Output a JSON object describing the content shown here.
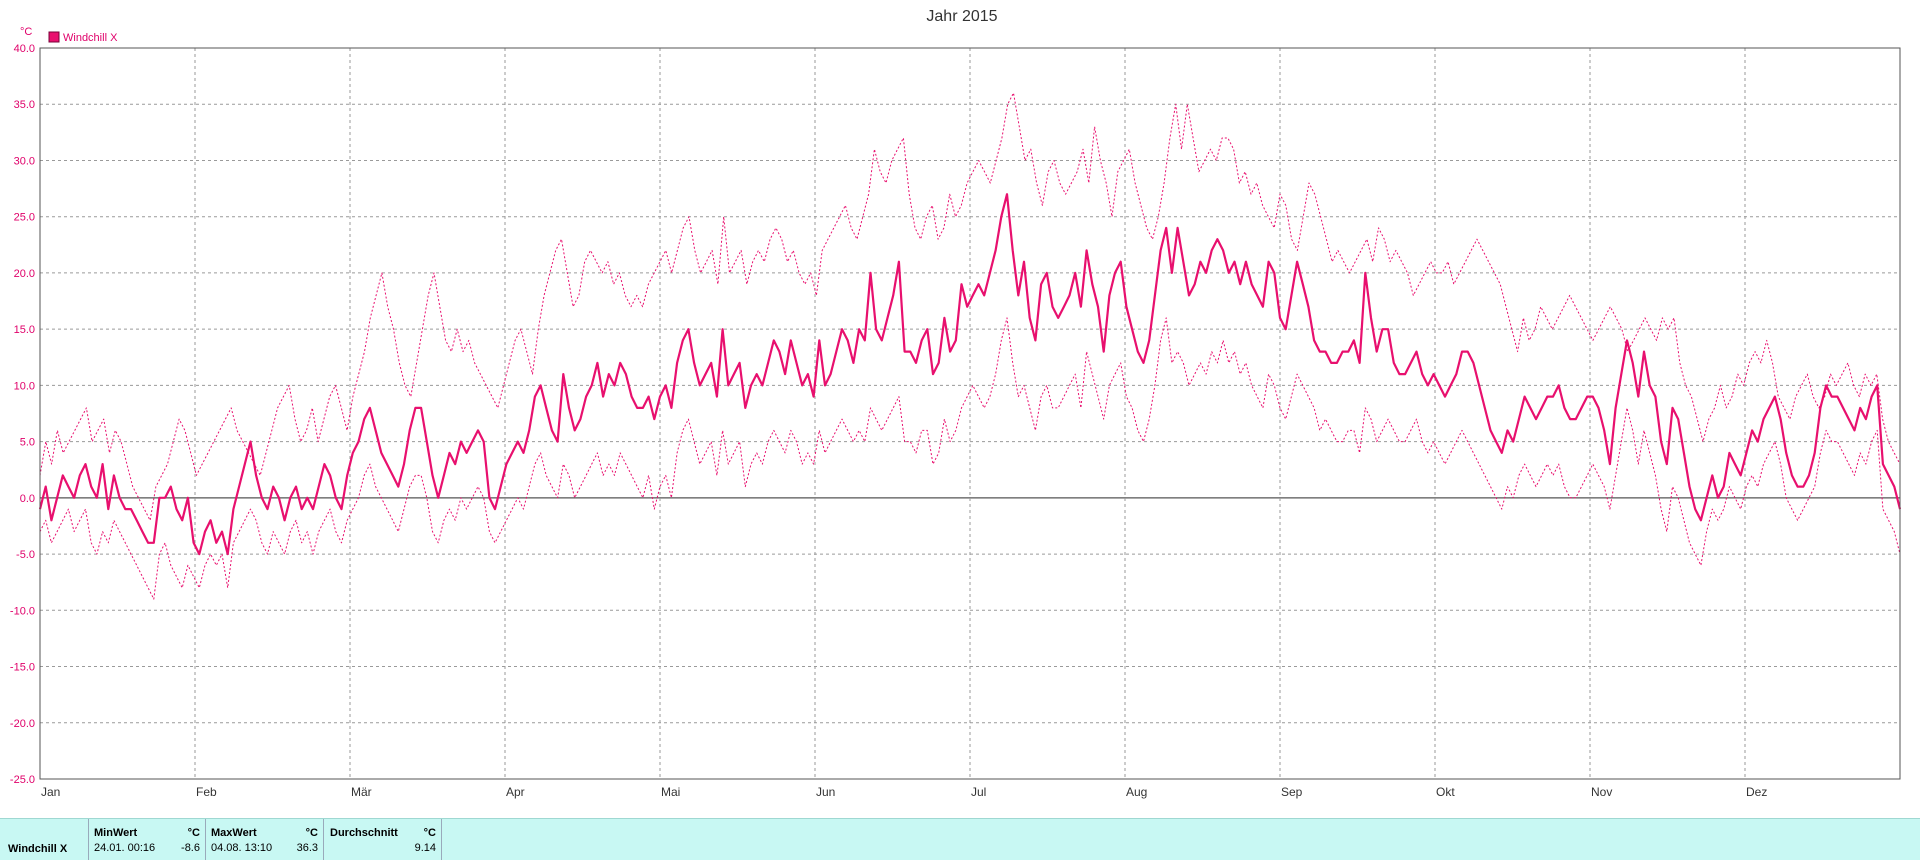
{
  "chart_data": {
    "type": "line",
    "title": "Jahr 2015",
    "yunit": "°C",
    "ylim": [
      -25,
      40
    ],
    "ytick_step": 5,
    "ytick_labels": [
      "40.0",
      "35.0",
      "30.0",
      "25.0",
      "20.0",
      "15.0",
      "10.0",
      "5.0",
      "0.0",
      "-5.0",
      "-10.0",
      "-15.0",
      "-20.0",
      "-25.0"
    ],
    "x_labels": [
      "Jan",
      "Feb",
      "Mär",
      "Apr",
      "Mai",
      "Jun",
      "Jul",
      "Aug",
      "Sep",
      "Okt",
      "Nov",
      "Dez"
    ],
    "grid": true,
    "legend_position": "top-left",
    "series": [
      {
        "name": "Windchill X",
        "style": "solid",
        "color": "#e8106e",
        "values": [
          -1,
          1,
          -2,
          0,
          2,
          1,
          0,
          2,
          3,
          1,
          0,
          3,
          -1,
          2,
          0,
          -1,
          -1,
          -2,
          -3,
          -4,
          -4,
          0,
          0,
          1,
          -1,
          -2,
          0,
          -4,
          -5,
          -3,
          -2,
          -4,
          -3,
          -5,
          -1,
          1,
          3,
          5,
          2,
          0,
          -1,
          1,
          0,
          -2,
          0,
          1,
          -1,
          0,
          -1,
          1,
          3,
          2,
          0,
          -1,
          2,
          4,
          5,
          7,
          8,
          6,
          4,
          3,
          2,
          1,
          3,
          6,
          8,
          8,
          5,
          2,
          0,
          2,
          4,
          3,
          5,
          4,
          5,
          6,
          5,
          0,
          -1,
          1,
          3,
          4,
          5,
          4,
          6,
          9,
          10,
          8,
          6,
          5,
          11,
          8,
          6,
          7,
          9,
          10,
          12,
          9,
          11,
          10,
          12,
          11,
          9,
          8,
          8,
          9,
          7,
          9,
          10,
          8,
          12,
          14,
          15,
          12,
          10,
          11,
          12,
          9,
          15,
          10,
          11,
          12,
          8,
          10,
          11,
          10,
          12,
          14,
          13,
          11,
          14,
          12,
          10,
          11,
          9,
          14,
          10,
          11,
          13,
          15,
          14,
          12,
          15,
          14,
          20,
          15,
          14,
          16,
          18,
          21,
          13,
          13,
          12,
          14,
          15,
          11,
          12,
          16,
          13,
          14,
          19,
          17,
          18,
          19,
          18,
          20,
          22,
          25,
          27,
          22,
          18,
          21,
          16,
          14,
          19,
          20,
          17,
          16,
          17,
          18,
          20,
          17,
          22,
          19,
          17,
          13,
          18,
          20,
          21,
          17,
          15,
          13,
          12,
          14,
          18,
          22,
          24,
          20,
          24,
          21,
          18,
          19,
          21,
          20,
          22,
          23,
          22,
          20,
          21,
          19,
          21,
          19,
          18,
          17,
          21,
          20,
          16,
          15,
          18,
          21,
          19,
          17,
          14,
          13,
          13,
          12,
          12,
          13,
          13,
          14,
          12,
          20,
          16,
          13,
          15,
          15,
          12,
          11,
          11,
          12,
          13,
          11,
          10,
          11,
          10,
          9,
          10,
          11,
          13,
          13,
          12,
          10,
          8,
          6,
          5,
          4,
          6,
          5,
          7,
          9,
          8,
          7,
          8,
          9,
          9,
          10,
          8,
          7,
          7,
          8,
          9,
          9,
          8,
          6,
          3,
          8,
          11,
          14,
          12,
          9,
          13,
          10,
          9,
          5,
          3,
          8,
          7,
          4,
          1,
          -1,
          -2,
          0,
          2,
          0,
          1,
          4,
          3,
          2,
          4,
          6,
          5,
          7,
          8,
          9,
          7,
          4,
          2,
          1,
          1,
          2,
          4,
          8,
          10,
          9,
          9,
          8,
          7,
          6,
          8,
          7,
          9,
          10,
          3,
          2,
          1,
          -1
        ]
      },
      {
        "name": "",
        "style": "dotted",
        "color": "#e8106e",
        "values": [
          2,
          5,
          3,
          6,
          4,
          5,
          6,
          7,
          8,
          5,
          6,
          7,
          4,
          6,
          5,
          3,
          1,
          0,
          -1,
          -2,
          1,
          2,
          3,
          5,
          7,
          6,
          4,
          2,
          3,
          4,
          5,
          6,
          7,
          8,
          6,
          5,
          4,
          3,
          2,
          4,
          6,
          8,
          9,
          10,
          7,
          5,
          6,
          8,
          5,
          7,
          9,
          10,
          8,
          6,
          9,
          11,
          13,
          16,
          18,
          20,
          17,
          15,
          12,
          10,
          9,
          12,
          15,
          18,
          20,
          17,
          14,
          13,
          15,
          13,
          14,
          12,
          11,
          10,
          9,
          8,
          10,
          12,
          14,
          15,
          13,
          11,
          15,
          18,
          20,
          22,
          23,
          20,
          17,
          18,
          21,
          22,
          21,
          20,
          21,
          19,
          20,
          18,
          17,
          18,
          17,
          19,
          20,
          21,
          22,
          20,
          22,
          24,
          25,
          22,
          20,
          21,
          22,
          19,
          25,
          20,
          21,
          22,
          19,
          21,
          22,
          21,
          23,
          24,
          23,
          21,
          22,
          20,
          19,
          20,
          18,
          22,
          23,
          24,
          25,
          26,
          24,
          23,
          25,
          27,
          31,
          29,
          28,
          30,
          31,
          32,
          27,
          24,
          23,
          25,
          26,
          23,
          24,
          27,
          25,
          26,
          28,
          29,
          30,
          29,
          28,
          30,
          32,
          35,
          36,
          33,
          30,
          31,
          28,
          26,
          29,
          30,
          28,
          27,
          28,
          29,
          31,
          28,
          33,
          30,
          28,
          25,
          29,
          30,
          31,
          28,
          26,
          24,
          23,
          25,
          28,
          32,
          35,
          31,
          35,
          32,
          29,
          30,
          31,
          30,
          32,
          32,
          31,
          28,
          29,
          27,
          28,
          26,
          25,
          24,
          27,
          26,
          23,
          22,
          25,
          28,
          27,
          25,
          23,
          21,
          22,
          21,
          20,
          21,
          22,
          23,
          21,
          24,
          23,
          21,
          22,
          21,
          20,
          18,
          19,
          20,
          21,
          20,
          20,
          21,
          19,
          20,
          21,
          22,
          23,
          22,
          21,
          20,
          19,
          17,
          15,
          13,
          16,
          14,
          15,
          17,
          16,
          15,
          16,
          17,
          18,
          17,
          16,
          15,
          14,
          15,
          16,
          17,
          16,
          15,
          13,
          14,
          15,
          16,
          15,
          14,
          16,
          15,
          16,
          12,
          10,
          9,
          7,
          5,
          7,
          8,
          10,
          8,
          9,
          11,
          10,
          12,
          13,
          12,
          14,
          12,
          9,
          8,
          7,
          9,
          10,
          11,
          9,
          8,
          9,
          11,
          10,
          11,
          12,
          10,
          9,
          11,
          10,
          11,
          7,
          5,
          4,
          3
        ]
      },
      {
        "name": "",
        "style": "dotted",
        "color": "#e8106e",
        "values": [
          -3,
          -2,
          -4,
          -3,
          -2,
          -1,
          -3,
          -2,
          -1,
          -4,
          -5,
          -3,
          -4,
          -2,
          -3,
          -4,
          -5,
          -6,
          -7,
          -8,
          -9,
          -5,
          -4,
          -6,
          -7,
          -8,
          -6,
          -7,
          -8,
          -6,
          -5,
          -6,
          -5,
          -8,
          -4,
          -3,
          -2,
          -1,
          -2,
          -4,
          -5,
          -3,
          -4,
          -5,
          -3,
          -2,
          -4,
          -3,
          -5,
          -3,
          -2,
          -1,
          -3,
          -4,
          -2,
          -1,
          0,
          2,
          3,
          1,
          0,
          -1,
          -2,
          -3,
          -1,
          1,
          2,
          2,
          0,
          -3,
          -4,
          -2,
          -1,
          -2,
          0,
          -1,
          0,
          1,
          0,
          -3,
          -4,
          -3,
          -2,
          -1,
          0,
          -1,
          1,
          3,
          4,
          2,
          1,
          0,
          3,
          2,
          0,
          1,
          2,
          3,
          4,
          2,
          3,
          2,
          4,
          3,
          2,
          1,
          0,
          2,
          -1,
          1,
          2,
          0,
          4,
          6,
          7,
          5,
          3,
          4,
          5,
          2,
          6,
          3,
          4,
          5,
          1,
          3,
          4,
          3,
          5,
          6,
          5,
          4,
          6,
          5,
          3,
          4,
          3,
          6,
          4,
          5,
          6,
          7,
          6,
          5,
          6,
          5,
          8,
          7,
          6,
          7,
          8,
          9,
          5,
          5,
          4,
          6,
          6,
          3,
          4,
          7,
          5,
          6,
          8,
          9,
          10,
          9,
          8,
          9,
          11,
          14,
          16,
          12,
          9,
          10,
          8,
          6,
          9,
          10,
          8,
          8,
          9,
          10,
          11,
          8,
          13,
          11,
          9,
          7,
          10,
          11,
          12,
          9,
          8,
          6,
          5,
          7,
          10,
          14,
          16,
          12,
          13,
          12,
          10,
          11,
          12,
          11,
          13,
          12,
          14,
          12,
          13,
          11,
          12,
          10,
          9,
          8,
          11,
          10,
          8,
          7,
          9,
          11,
          10,
          9,
          8,
          6,
          7,
          6,
          5,
          5,
          6,
          6,
          4,
          8,
          7,
          5,
          6,
          7,
          6,
          5,
          5,
          6,
          7,
          5,
          4,
          5,
          4,
          3,
          4,
          5,
          6,
          5,
          4,
          3,
          2,
          1,
          0,
          -1,
          1,
          0,
          2,
          3,
          2,
          1,
          2,
          3,
          2,
          3,
          1,
          0,
          0,
          1,
          2,
          3,
          2,
          1,
          -1,
          2,
          5,
          8,
          6,
          3,
          6,
          4,
          2,
          -1,
          -3,
          1,
          0,
          -2,
          -4,
          -5,
          -6,
          -3,
          -1,
          -2,
          -1,
          1,
          0,
          -1,
          1,
          2,
          1,
          3,
          4,
          5,
          3,
          0,
          -1,
          -2,
          -1,
          0,
          1,
          4,
          6,
          5,
          5,
          4,
          3,
          2,
          4,
          3,
          5,
          6,
          -1,
          -2,
          -3,
          -5
        ]
      }
    ]
  },
  "legend": {
    "label": "Windchill X",
    "color": "#e8106e"
  },
  "stats": {
    "row_label": "Windchill X",
    "min_header": "MinWert",
    "min_unit": "°C",
    "min_time": "24.01.  00:16",
    "min_value": "-8.6",
    "max_header": "MaxWert",
    "max_unit": "°C",
    "max_time": "04.08.  13:10",
    "max_value": "36.3",
    "avg_header": "Durchschnitt",
    "avg_unit": "°C",
    "avg_value": "9.14"
  }
}
